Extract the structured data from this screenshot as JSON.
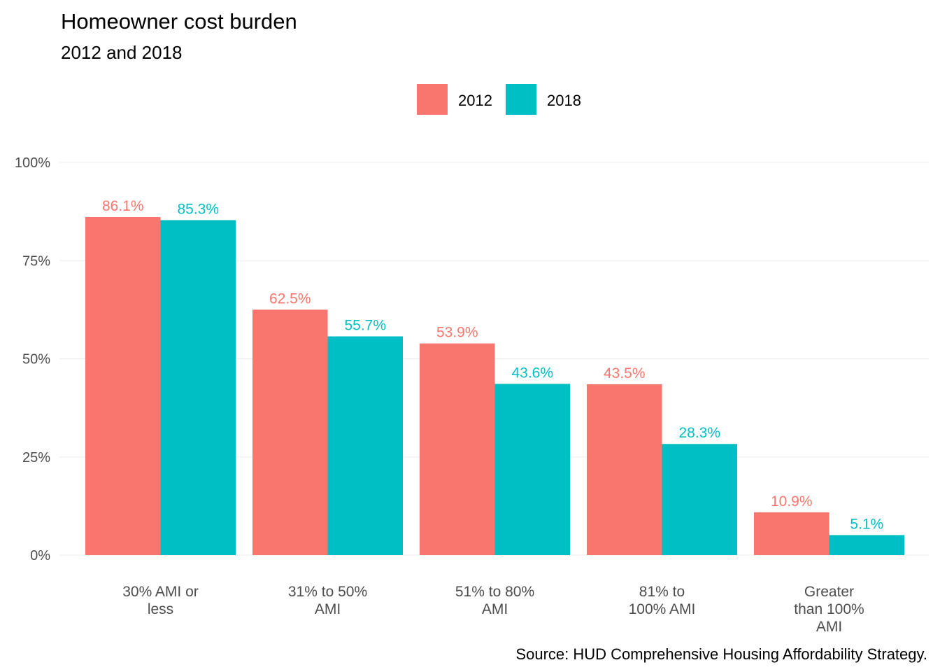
{
  "chart_data": {
    "type": "bar",
    "title": "Homeowner cost burden",
    "subtitle": "2012 and 2018",
    "caption": "Source: HUD Comprehensive Housing Affordability Strategy.",
    "categories": [
      [
        "30% AMI or",
        "less"
      ],
      [
        "31% to 50%",
        "AMI"
      ],
      [
        "51% to 80%",
        "AMI"
      ],
      [
        "81% to",
        "100% AMI"
      ],
      [
        "Greater",
        "than 100%",
        "AMI"
      ]
    ],
    "series": [
      {
        "name": "2012",
        "color": "#F8766D",
        "values": [
          86.1,
          62.5,
          53.9,
          43.5,
          10.9
        ],
        "labels": [
          "86.1%",
          "62.5%",
          "53.9%",
          "43.5%",
          "10.9%"
        ]
      },
      {
        "name": "2018",
        "color": "#00BFC4",
        "values": [
          85.3,
          55.7,
          43.6,
          28.3,
          5.1
        ],
        "labels": [
          "85.3%",
          "55.7%",
          "43.6%",
          "28.3%",
          "5.1%"
        ]
      }
    ],
    "yticks": [
      0,
      25,
      50,
      75,
      100
    ],
    "ytick_labels": [
      "0%",
      "25%",
      "50%",
      "75%",
      "100%"
    ],
    "ylim": [
      0,
      100
    ],
    "grid": true,
    "legend_position": "top"
  }
}
